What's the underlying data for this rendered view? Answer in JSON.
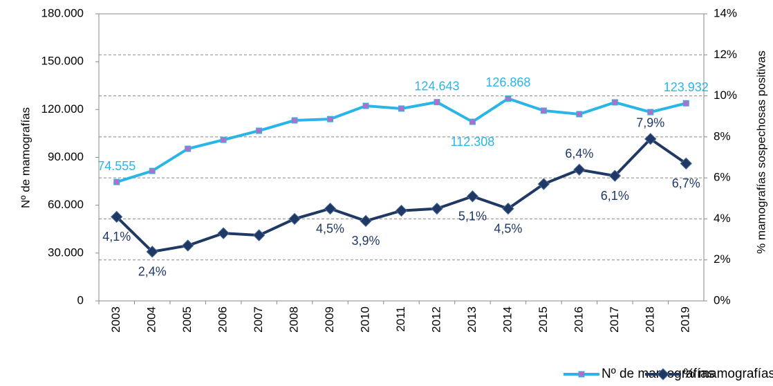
{
  "chart_data": {
    "type": "line",
    "categories": [
      "2003",
      "2004",
      "2005",
      "2006",
      "2007",
      "2008",
      "2009",
      "2010",
      "2011",
      "2012",
      "2013",
      "2014",
      "2015",
      "2016",
      "2017",
      "2018",
      "2019"
    ],
    "series": [
      {
        "name": "Nº de mamografías",
        "color": "#29b5e8",
        "marker_color": "#b070c8",
        "values": [
          74555,
          81500,
          95400,
          101000,
          106700,
          113200,
          114000,
          122300,
          120600,
          124643,
          112308,
          126868,
          119300,
          117100,
          124500,
          118400,
          123932
        ],
        "value_labels": [
          "74.555",
          null,
          null,
          null,
          null,
          null,
          null,
          null,
          null,
          "124.643",
          "112.308",
          "126.868",
          null,
          null,
          null,
          null,
          "123.932"
        ]
      },
      {
        "name": "% mamografías positivas",
        "color": "#1f3864",
        "axis": "y2",
        "values": [
          4.1,
          2.4,
          2.7,
          3.3,
          3.2,
          4.0,
          4.5,
          3.9,
          4.4,
          4.5,
          5.1,
          4.5,
          5.7,
          6.4,
          6.1,
          7.9,
          6.7
        ],
        "value_labels": [
          "4,1%",
          "2,4%",
          null,
          null,
          null,
          null,
          "4,5%",
          "3,9%",
          null,
          null,
          "5,1%",
          "4,5%",
          null,
          "6,4%",
          "6,1%",
          "7,9%",
          "6,7%"
        ]
      }
    ],
    "y_label": "Nº de mamografías",
    "y2_label": "% mamografías sospechosas positivas",
    "ylim": [
      0,
      180000
    ],
    "yticks": [
      0,
      {
        "value": 30000,
        "label": "30.000"
      },
      {
        "value": 60000,
        "label": "60.000"
      },
      {
        "value": 90000,
        "label": "90.000"
      },
      {
        "value": 120000,
        "label": "120.000"
      },
      {
        "value": 150000,
        "label": "150.000"
      },
      {
        "value": 180000,
        "label": "180.000"
      }
    ],
    "y2lim": [
      0,
      14
    ],
    "y2ticks": [
      {
        "value": 0,
        "label": "0%"
      },
      {
        "value": 2,
        "label": "2%"
      },
      {
        "value": 4,
        "label": "4%"
      },
      {
        "value": 6,
        "label": "6%"
      },
      {
        "value": 8,
        "label": "8%"
      },
      {
        "value": 10,
        "label": "10%"
      },
      {
        "value": 12,
        "label": "12%"
      },
      {
        "value": 14,
        "label": "14%"
      }
    ],
    "grid": true,
    "legend": "bottom"
  }
}
